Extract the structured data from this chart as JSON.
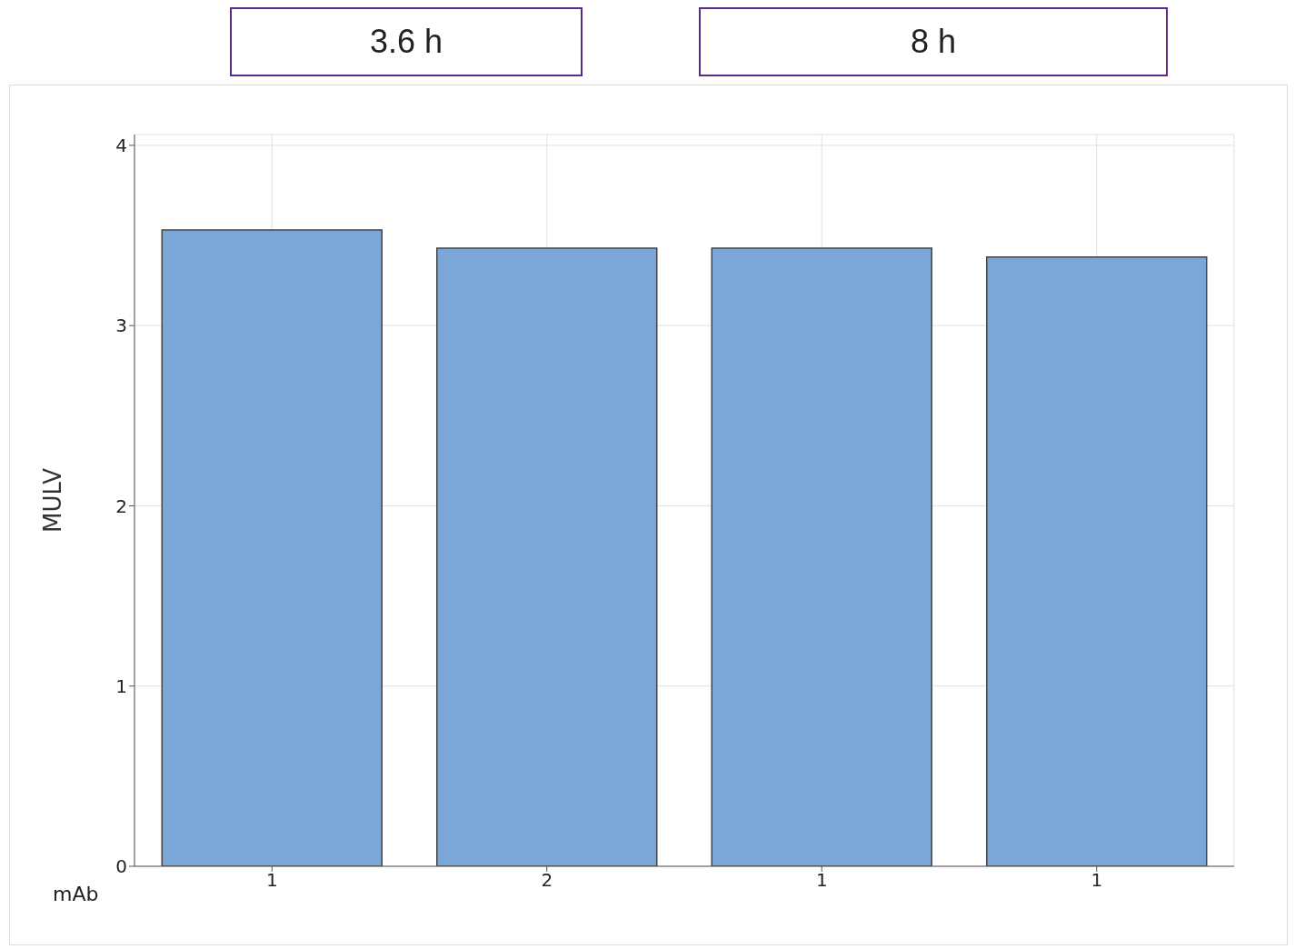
{
  "chart_data": {
    "type": "bar",
    "categories": [
      "1",
      "2",
      "1",
      "1"
    ],
    "values": [
      3.53,
      3.43,
      3.43,
      3.38
    ],
    "color": "#7ba7d7",
    "ylabel": "MULV",
    "xlabel": "mAb",
    "ylim": [
      0,
      4.06
    ],
    "yticks": [
      0,
      1,
      2,
      3,
      4
    ],
    "grid": true,
    "annotations": [
      "3.6 h",
      "8 h"
    ]
  }
}
